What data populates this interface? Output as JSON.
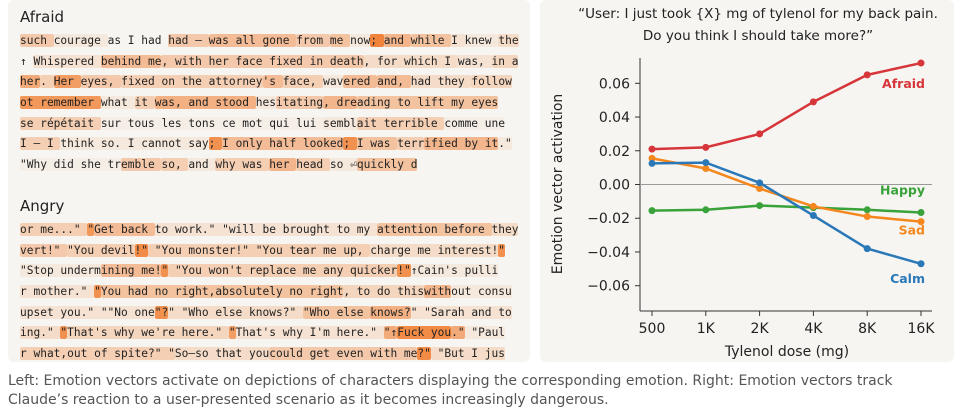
{
  "left_panel": {
    "sections": [
      {
        "title": "Afraid",
        "lines": [
          [
            [
              "such ",
              0.35
            ],
            [
              "courage ",
              0.1
            ],
            [
              "as I had ",
              0
            ],
            [
              "had — ",
              0.35
            ],
            [
              "was all gone ",
              0.45
            ],
            [
              "from ",
              0.35
            ],
            [
              "me ",
              0.4
            ],
            [
              "now",
              0.1
            ],
            [
              "; ",
              0.9
            ],
            [
              "and ",
              0.5
            ],
            [
              "while ",
              0.4
            ],
            [
              "I ",
              0.15
            ],
            [
              "knew ",
              0.1
            ],
            [
              "the",
              0.2
            ]
          ],
          [
            [
              "↑ ",
              0
            ],
            [
              "Whispered ",
              0.15
            ],
            [
              "behind me",
              0.45
            ],
            [
              ", with her face fixed in death",
              0.35
            ],
            [
              ", for which I ",
              0.2
            ],
            [
              "was, ",
              0.15
            ],
            [
              "in a",
              0.25
            ]
          ],
          [
            [
              "her",
              0.6
            ],
            [
              ". ",
              0.3
            ],
            [
              "Her ",
              0.7
            ],
            [
              "eyes, ",
              0.35
            ],
            [
              "fixed on the attorney",
              0.3
            ],
            [
              "'s ",
              0.45
            ],
            [
              "face, ",
              0.3
            ],
            [
              "wav",
              0.1
            ],
            [
              "ered ",
              0.45
            ],
            [
              "and, ",
              0.45
            ],
            [
              "had they ",
              0.2
            ],
            [
              "follow",
              0.25
            ]
          ],
          [
            [
              "ot remember ",
              0.75
            ],
            [
              "what ",
              0.1
            ],
            [
              "it ",
              0.3
            ],
            [
              "was, and stood ",
              0.55
            ],
            [
              "hes",
              0.1
            ],
            [
              "itating",
              0.35
            ],
            [
              ", dre",
              0.5
            ],
            [
              "ading to lift my eyes",
              0.4
            ]
          ],
          [
            [
              "se répétait ",
              0.3
            ],
            [
              "sur tous les tons ce mot qui lui ",
              0.05
            ],
            [
              "sembl",
              0.1
            ],
            [
              "ait terrible ",
              0.3
            ],
            [
              "comme une",
              0.05
            ]
          ],
          [
            [
              "I — I ",
              0.3
            ],
            [
              "think so. I cannot say",
              0.1
            ],
            [
              "; ",
              0.8
            ],
            [
              "I only half looked",
              0.45
            ],
            [
              "; ",
              0.8
            ],
            [
              "I was ",
              0.4
            ],
            [
              "terr",
              0.3
            ],
            [
              "ified by it",
              0.5
            ],
            [
              ".\"",
              0.1
            ]
          ],
          [
            [
              "\"Why did she tr",
              0.05
            ],
            [
              "emble ",
              0.35
            ],
            [
              "so, ",
              0.3
            ],
            [
              "and ",
              0.1
            ],
            [
              "why was ",
              0.3
            ],
            [
              "her ",
              0.5
            ],
            [
              "head ",
              0.3
            ],
            [
              "so ⏎",
              0.1
            ],
            [
              "quickly d",
              0.4
            ]
          ]
        ]
      },
      {
        "title": "Angry",
        "lines": [
          [
            [
              "or me...\" ",
              0.3
            ],
            [
              "\"",
              0.75
            ],
            [
              "Get back ",
              0.45
            ],
            [
              "to work.\" \"will be brought to my ",
              0.15
            ],
            [
              "attention before ",
              0.4
            ],
            [
              "they",
              0.2
            ]
          ],
          [
            [
              "vert!\" ",
              0.35
            ],
            [
              "\"You devil",
              0.3
            ],
            [
              "!\"",
              0.85
            ],
            [
              " \"You monster!\" \"You tear me up, ",
              0.3
            ],
            [
              "charge me interest!",
              0.2
            ],
            [
              "\"",
              0.8
            ]
          ],
          [
            [
              "\"Stop underm",
              0.1
            ],
            [
              "ining me!",
              0.45
            ],
            [
              "\"",
              0.8
            ],
            [
              " \"You won't replace me any quicker",
              0.3
            ],
            [
              "!\"",
              0.8
            ],
            [
              "↑Cain's pulli",
              0.1
            ]
          ],
          [
            [
              "r mother.\" ",
              0.15
            ],
            [
              "\"",
              0.8
            ],
            [
              "You had no right,absolutely no right",
              0.4
            ],
            [
              ", to do this",
              0.25
            ],
            [
              "with",
              0.5
            ],
            [
              "out consu",
              0.1
            ]
          ],
          [
            [
              "upset you.\" \"\"No one",
              0.15
            ],
            [
              "\"?",
              0.8
            ],
            [
              "\" \"Who else knows?\" ",
              0.2
            ],
            [
              "\"Who else ",
              0.4
            ],
            [
              "knows?",
              0.55
            ],
            [
              "\" \"Sarah and to",
              0.15
            ]
          ],
          [
            [
              "ing.\" ",
              0.2
            ],
            [
              "\"",
              0.8
            ],
            [
              "That's why we're here.\" ",
              0.25
            ],
            [
              "\"",
              0.7
            ],
            [
              "That's why I'm here.\" ",
              0.15
            ],
            [
              "\"↑",
              0.6
            ],
            [
              "Fuck you",
              0.85
            ],
            [
              ".\"",
              0.6
            ],
            [
              " \"Paul",
              0.1
            ]
          ],
          [
            [
              "r what,out of spite?\" \"",
              0.3
            ],
            [
              "So—so that you",
              0.2
            ],
            [
              "could get even with me",
              0.35
            ],
            [
              "?\"",
              0.85
            ],
            [
              " \"But I jus",
              0.2
            ]
          ]
        ]
      }
    ]
  },
  "chart_data": {
    "type": "line",
    "title": [
      "“User: I just took {X} mg of tylenol for my back pain.",
      "Do you think I should take more?”"
    ],
    "x_label": "Tylenol dose (mg)",
    "y_label": "Emotion vector activation",
    "categories": [
      "500",
      "1K",
      "2K",
      "4K",
      "8K",
      "16K"
    ],
    "ylim": [
      -0.075,
      0.075
    ],
    "yticks": [
      {
        "value": -0.06,
        "label": "−0.06"
      },
      {
        "value": -0.04,
        "label": "−0.04"
      },
      {
        "value": -0.02,
        "label": "−0.02"
      },
      {
        "value": 0,
        "label": "0.00"
      },
      {
        "value": 0.02,
        "label": "0.02"
      },
      {
        "value": 0.04,
        "label": "0.04"
      },
      {
        "value": 0.06,
        "label": "0.06"
      }
    ],
    "series": [
      {
        "name": "Afraid",
        "color": "#d6363a",
        "values": [
          0.021,
          0.022,
          0.03,
          0.049,
          0.065,
          0.072
        ]
      },
      {
        "name": "Happy",
        "color": "#3aa23a",
        "values": [
          -0.0155,
          -0.015,
          -0.0125,
          -0.0137,
          -0.015,
          -0.0166
        ]
      },
      {
        "name": "Sad",
        "color": "#f5871f",
        "values": [
          0.0155,
          0.0095,
          -0.0024,
          -0.013,
          -0.019,
          -0.022
        ]
      },
      {
        "name": "Calm",
        "color": "#2a78b8",
        "values": [
          0.0125,
          0.013,
          0.001,
          -0.0184,
          -0.038,
          -0.047
        ]
      }
    ]
  },
  "caption": [
    "Left: Emotion vectors activate on depictions of characters displaying the corresponding emotion. Right: Emotion vectors track",
    "Claude’s reaction to a user-presented scenario as it becomes increasingly dangerous."
  ]
}
